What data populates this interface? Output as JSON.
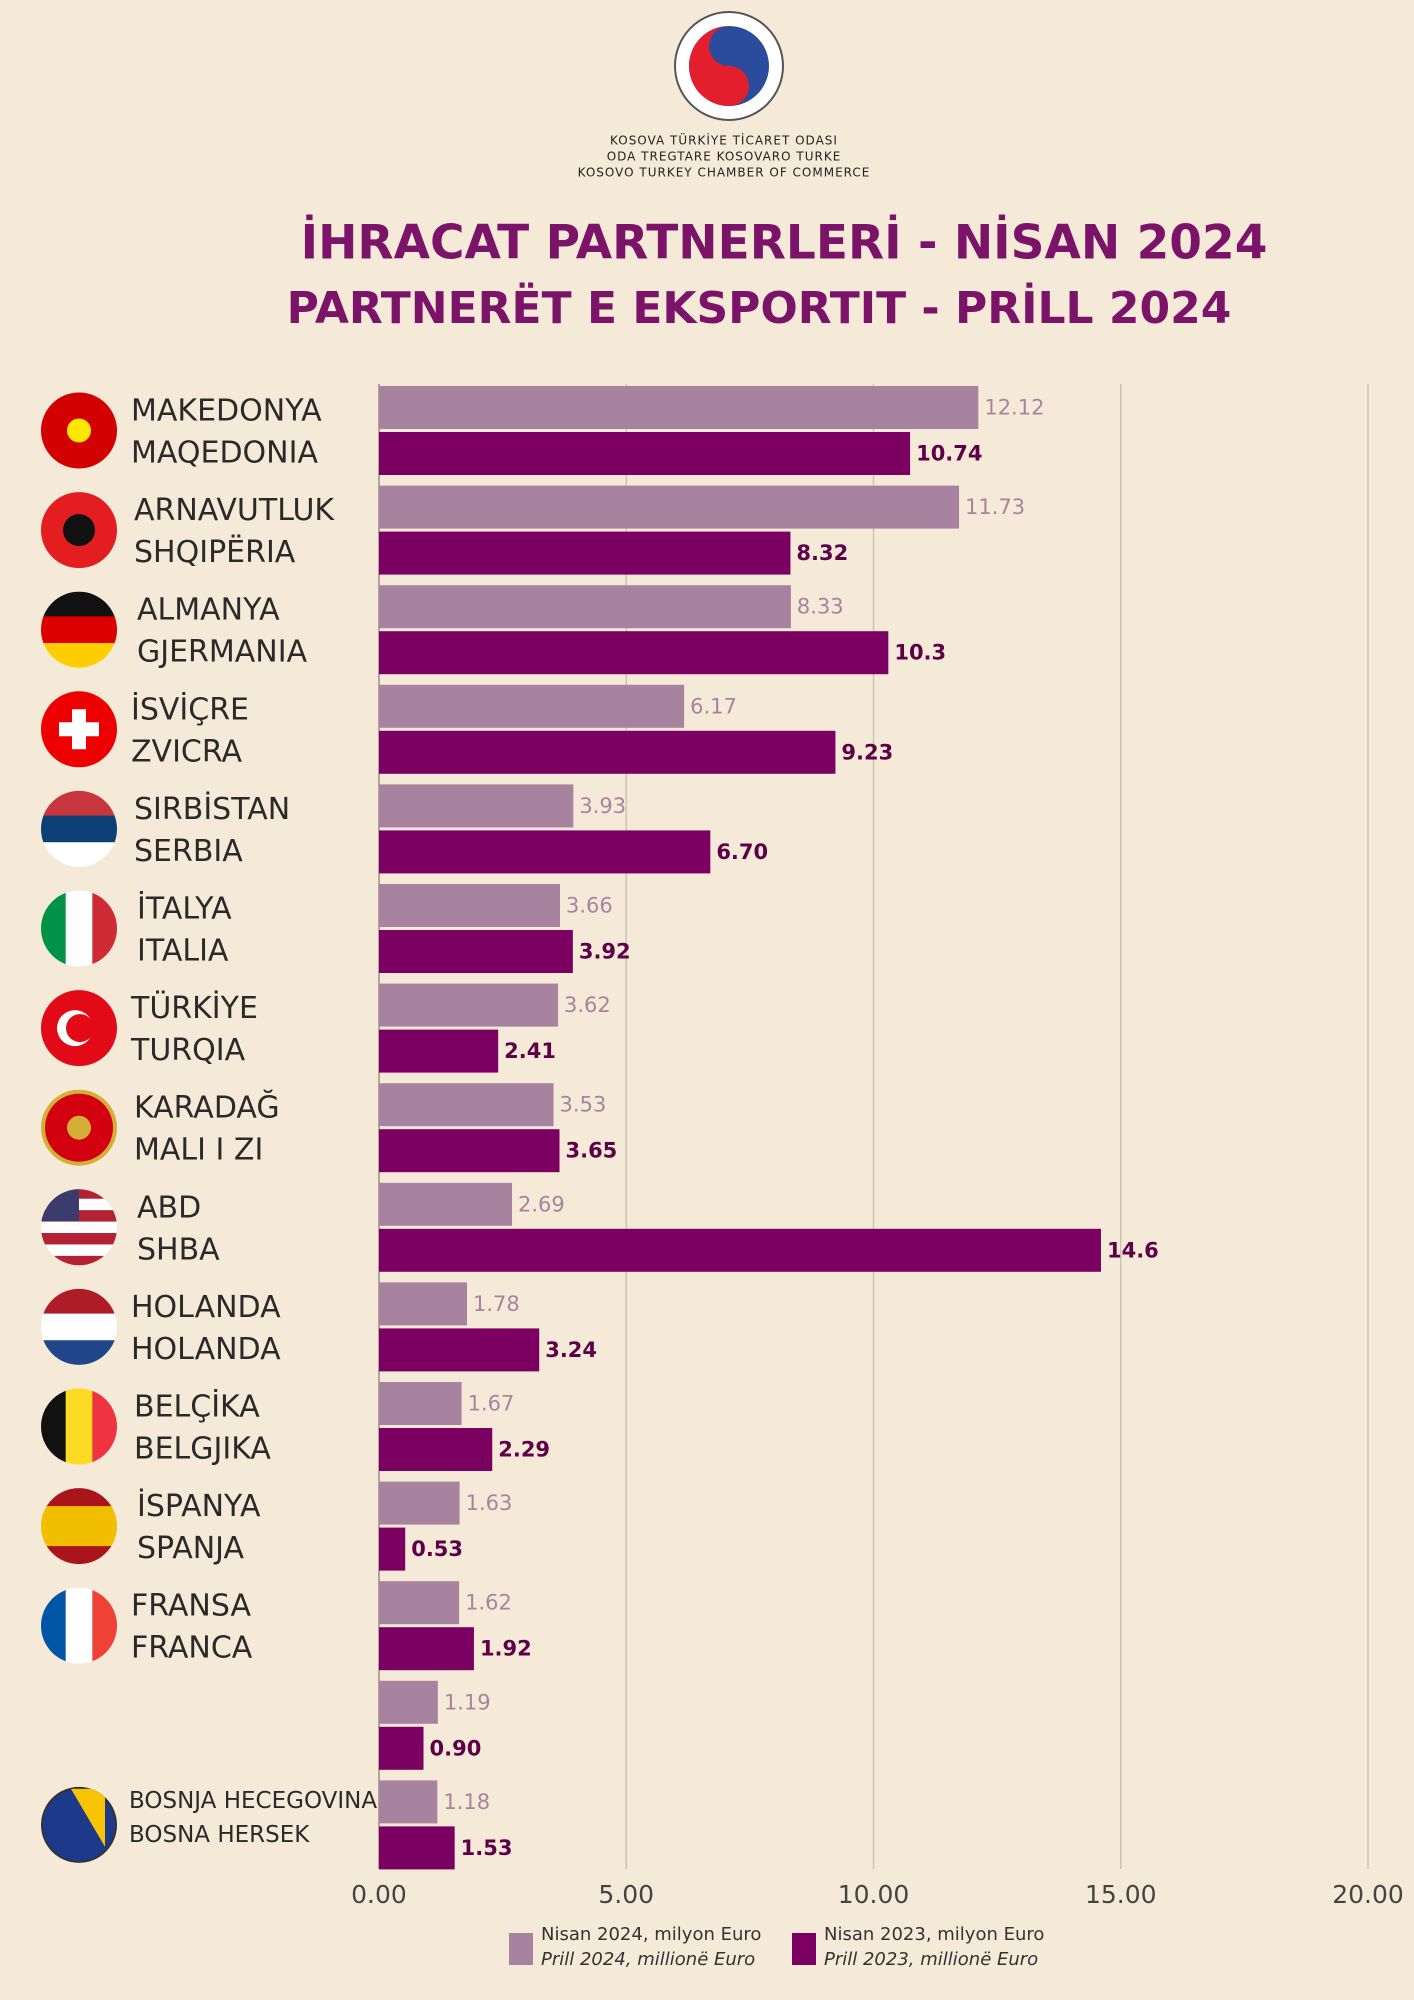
{
  "header": {
    "lines": [
      "KOSOVA TÜRKİYE TİCARET ODASI",
      "ODA TREGTARE KOSOVARO TURKE",
      "KOSOVO TURKEY CHAMBER OF COMMERCE"
    ]
  },
  "chart_data": {
    "type": "hbar",
    "title": "İHRACAT PARTNERLERİ - NİSAN 2024",
    "subtitle": "PARTNERËT E EKSPORTIT - PRİLL 2024",
    "categories": [
      [
        "MAKEDONYA",
        "MAQEDONIA"
      ],
      [
        "ARNAVUTLUK",
        "SHQIPËRIA"
      ],
      [
        "ALMANYA",
        "GJERMANIA"
      ],
      [
        "İSVİÇRE",
        "ZVICRA"
      ],
      [
        "SIRBİSTAN",
        "SERBIA"
      ],
      [
        "İTALYA",
        "ITALIA"
      ],
      [
        "TÜRKİYE",
        "TURQIA"
      ],
      [
        "KARADAĞ",
        "MALI I ZI"
      ],
      [
        "ABD",
        "SHBA"
      ],
      [
        "HOLANDA",
        "HOLANDA"
      ],
      [
        "BELÇİKA",
        "BELGJIKA"
      ],
      [
        "İSPANYA",
        "SPANJA"
      ],
      [
        "FRANSA",
        "FRANCA"
      ],
      null,
      [
        "BOSNJA HECEGOVINA",
        "BOSNA HERSEK"
      ]
    ],
    "series": [
      {
        "name": "Nisan 2024, milyon Euro",
        "name_alt": "Prill 2024, millionë Euro",
        "color": "#a8839f",
        "values": [
          12.12,
          11.73,
          8.33,
          6.17,
          3.93,
          3.66,
          3.62,
          3.53,
          2.69,
          1.78,
          1.67,
          1.63,
          1.62,
          1.19,
          1.18
        ]
      },
      {
        "name": "Nisan 2023, milyon Euro",
        "name_alt": "Prill 2023, millionë Euro",
        "color": "#7b0062",
        "values": [
          10.74,
          8.32,
          10.3,
          9.23,
          6.7,
          3.92,
          2.41,
          3.65,
          14.6,
          3.24,
          2.29,
          0.53,
          1.92,
          0.9,
          1.53
        ],
        "value_labels": [
          "10.74",
          "8.32",
          "10.3",
          "9.23",
          "6.70",
          "3.92",
          "2.41",
          "3.65",
          "14.6",
          "3.24",
          "2.29",
          "0.53",
          "1.92",
          "0.90",
          "1.53"
        ]
      }
    ],
    "xlim": [
      0,
      20
    ],
    "xticks": [
      {
        "value": 0,
        "label": "0.00"
      },
      {
        "value": 5,
        "label": "5.00"
      },
      {
        "value": 10,
        "label": "10.00"
      },
      {
        "value": 15,
        "label": "15.00"
      },
      {
        "value": 20,
        "label": "20.00"
      }
    ],
    "grid": true
  }
}
